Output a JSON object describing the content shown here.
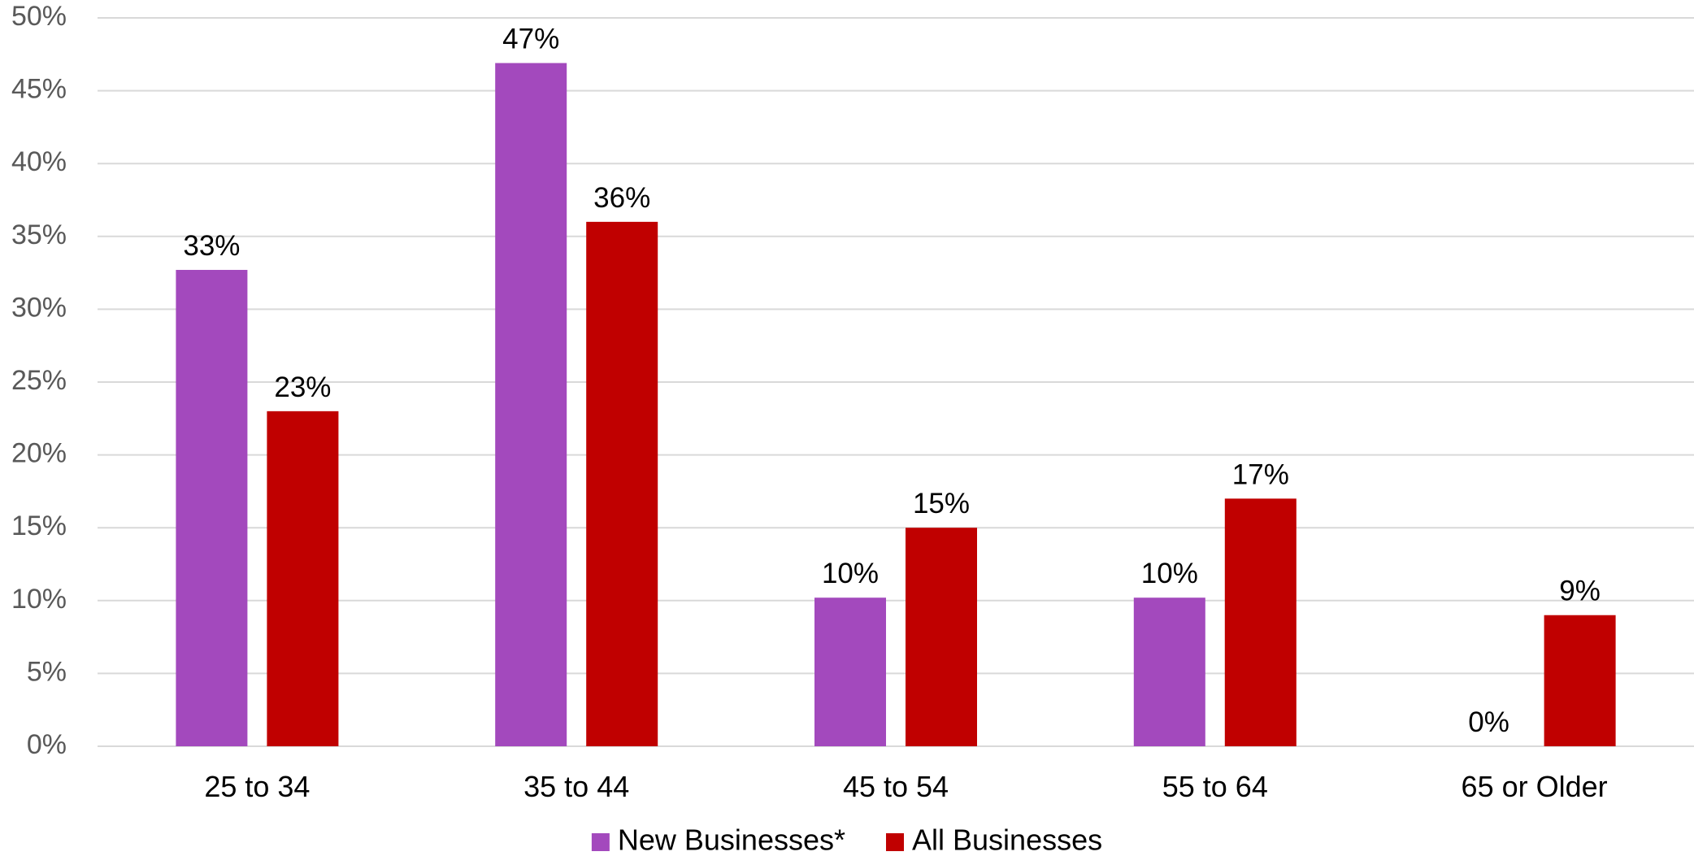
{
  "chart_data": {
    "type": "bar",
    "categories": [
      "25 to 34",
      "35 to 44",
      "45 to 54",
      "55 to 64",
      "65 or Older"
    ],
    "series": [
      {
        "name": "New Businesses*",
        "color": "#a349bd",
        "values": [
          32.7,
          46.9,
          10.2,
          10.2,
          0
        ],
        "labels": [
          "33%",
          "47%",
          "10%",
          "10%",
          "0%"
        ]
      },
      {
        "name": "All Businesses",
        "color": "#c00000",
        "values": [
          23,
          36,
          15,
          17,
          9
        ],
        "labels": [
          "23%",
          "36%",
          "15%",
          "17%",
          "9%"
        ]
      }
    ],
    "ylim": [
      0,
      50
    ],
    "yticks": [
      0,
      5,
      10,
      15,
      20,
      25,
      30,
      35,
      40,
      45,
      50
    ],
    "ytick_labels": [
      "0%",
      "5%",
      "10%",
      "15%",
      "20%",
      "25%",
      "30%",
      "35%",
      "40%",
      "45%",
      "50%"
    ],
    "grid": true,
    "legend_position": "bottom",
    "title": "",
    "xlabel": "",
    "ylabel": ""
  }
}
